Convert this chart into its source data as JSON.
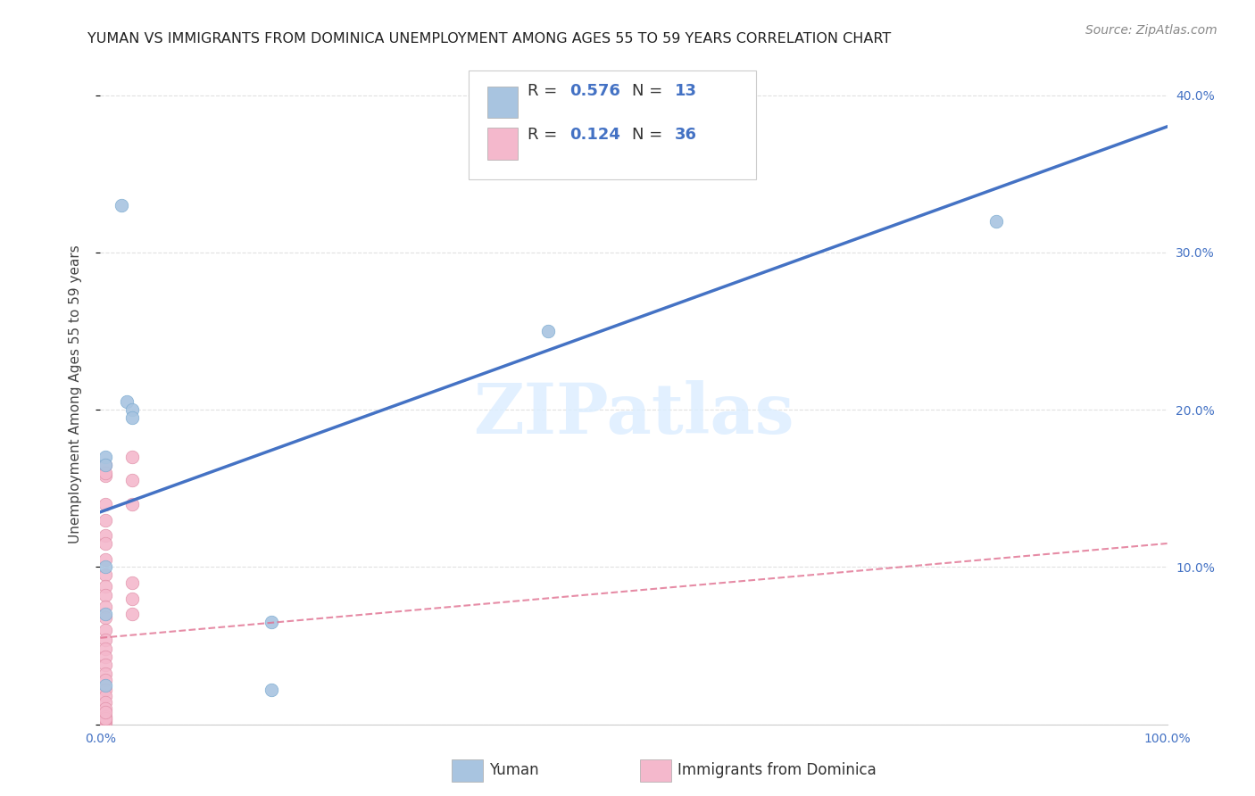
{
  "title": "YUMAN VS IMMIGRANTS FROM DOMINICA UNEMPLOYMENT AMONG AGES 55 TO 59 YEARS CORRELATION CHART",
  "source": "Source: ZipAtlas.com",
  "ylabel": "Unemployment Among Ages 55 to 59 years",
  "xlim": [
    0,
    1.0
  ],
  "ylim": [
    0,
    0.42
  ],
  "watermark": "ZIPatlas",
  "legend_r1": "0.576",
  "legend_n1": "13",
  "legend_r2": "0.124",
  "legend_n2": "36",
  "yuman_color": "#a8c4e0",
  "yuman_edge_color": "#7aaad0",
  "yuman_line_color": "#4472c4",
  "dominica_color": "#f4b8cc",
  "dominica_edge_color": "#e090a8",
  "dominica_line_color": "#e07090",
  "yuman_points_x": [
    0.02,
    0.025,
    0.03,
    0.03,
    0.005,
    0.005,
    0.005,
    0.005,
    0.005,
    0.16,
    0.16,
    0.42,
    0.84
  ],
  "yuman_points_y": [
    0.33,
    0.205,
    0.2,
    0.195,
    0.17,
    0.165,
    0.1,
    0.07,
    0.025,
    0.065,
    0.022,
    0.25,
    0.32
  ],
  "dominica_points_x": [
    0.005,
    0.005,
    0.005,
    0.005,
    0.005,
    0.005,
    0.005,
    0.005,
    0.005,
    0.005,
    0.005,
    0.005,
    0.005,
    0.005,
    0.005,
    0.005,
    0.005,
    0.005,
    0.005,
    0.005,
    0.005,
    0.005,
    0.005,
    0.005,
    0.005,
    0.005,
    0.005,
    0.005,
    0.005,
    0.005,
    0.03,
    0.03,
    0.03,
    0.03,
    0.03,
    0.03
  ],
  "dominica_points_y": [
    0.13,
    0.12,
    0.115,
    0.105,
    0.095,
    0.088,
    0.082,
    0.075,
    0.068,
    0.06,
    0.054,
    0.048,
    0.043,
    0.038,
    0.032,
    0.028,
    0.022,
    0.018,
    0.014,
    0.01,
    0.005,
    0.158,
    0.165,
    0.16,
    0.14,
    0.001,
    0.002,
    0.003,
    0.004,
    0.008,
    0.17,
    0.155,
    0.14,
    0.09,
    0.08,
    0.07
  ],
  "yuman_line_x": [
    0.0,
    1.0
  ],
  "yuman_line_y": [
    0.135,
    0.38
  ],
  "dominica_line_x": [
    0.0,
    1.0
  ],
  "dominica_line_y": [
    0.055,
    0.115
  ],
  "background_color": "#ffffff",
  "grid_color": "#e0e0e0",
  "title_fontsize": 11.5,
  "axis_label_fontsize": 11,
  "tick_fontsize": 10,
  "legend_fontsize": 13,
  "source_fontsize": 10
}
